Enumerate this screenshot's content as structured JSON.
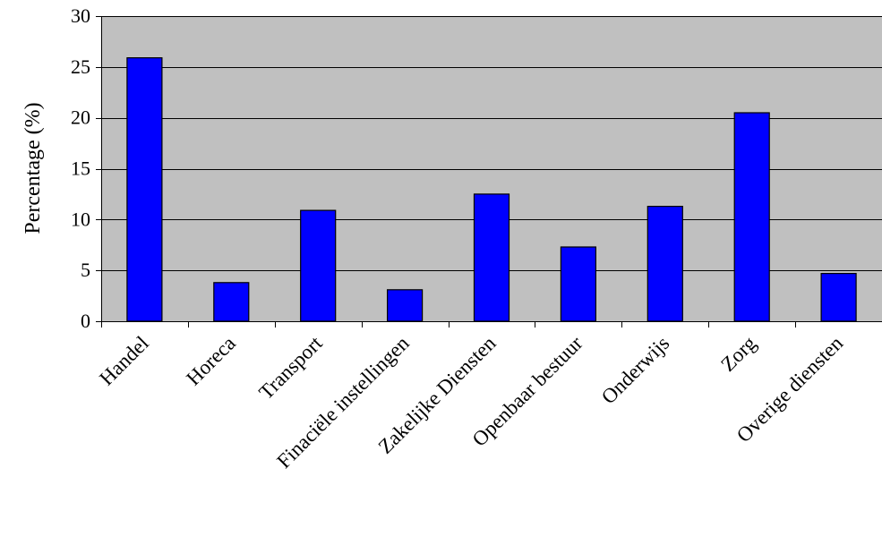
{
  "chart_data": {
    "type": "bar",
    "title": "",
    "xlabel": "",
    "ylabel": "Percentage (%)",
    "ylim": [
      0,
      30
    ],
    "yticks": [
      0,
      5,
      10,
      15,
      20,
      25,
      30
    ],
    "grid": true,
    "legend": "none",
    "categories": [
      "Handel",
      "Horeca",
      "Transport",
      "Finaciële instellingen",
      "Zakelijke Diensten",
      "Openbaar bestuur",
      "Onderwijs",
      "Zorg",
      "Overige diensten"
    ],
    "values": [
      25.9,
      3.8,
      10.9,
      3.1,
      12.5,
      7.3,
      11.3,
      20.5,
      4.7
    ],
    "colors": {
      "bar": "#0000ff",
      "bar_border": "#000000",
      "plot_background": "#c0c0c0",
      "gridline": "#000000"
    }
  }
}
